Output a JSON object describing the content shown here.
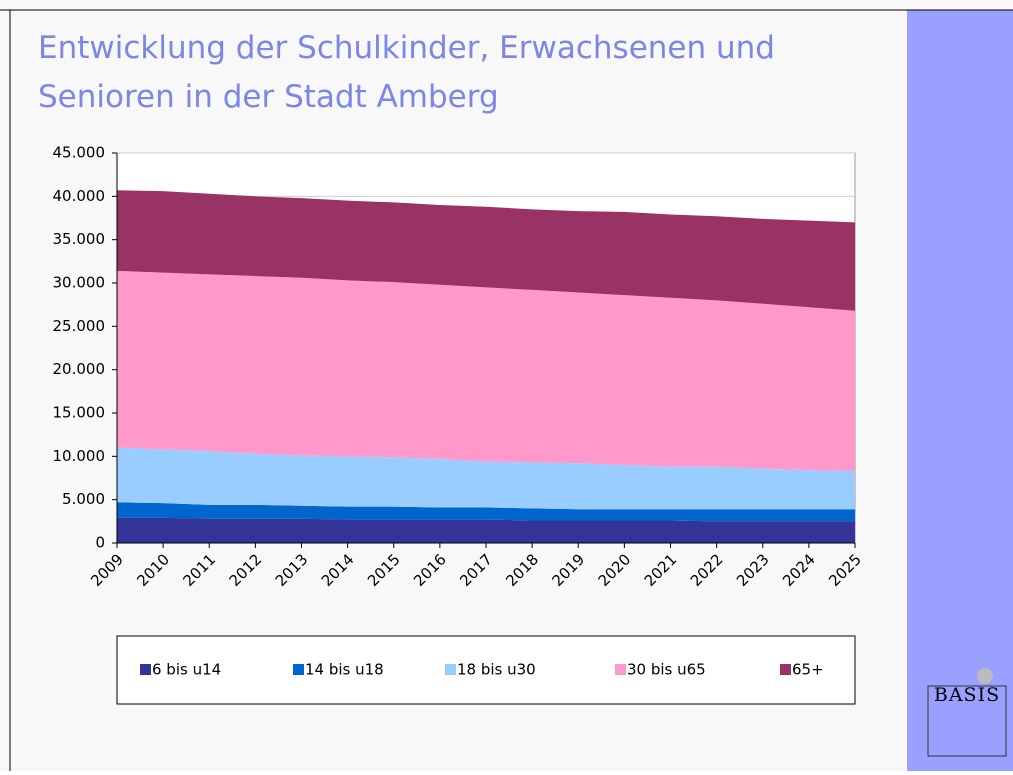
{
  "chart_data": {
    "type": "stacked_area",
    "title": [
      "Entwicklung der Schulkinder, Erwachsenen und",
      "Senioren in der Stadt Amberg"
    ],
    "categories": [
      "2009",
      "2010",
      "2011",
      "2012",
      "2013",
      "2014",
      "2015",
      "2016",
      "2017",
      "2018",
      "2019",
      "2020",
      "2021",
      "2022",
      "2023",
      "2024",
      "2025"
    ],
    "series": [
      {
        "name": "6 bis u14",
        "color": "#333399",
        "values": [
          2900,
          2900,
          2800,
          2800,
          2800,
          2700,
          2700,
          2700,
          2700,
          2600,
          2600,
          2600,
          2600,
          2500,
          2500,
          2500,
          2500
        ]
      },
      {
        "name": "14 bis u18",
        "color": "#0066cc",
        "values": [
          1800,
          1700,
          1600,
          1600,
          1500,
          1500,
          1500,
          1400,
          1400,
          1400,
          1300,
          1300,
          1300,
          1400,
          1400,
          1400,
          1400
        ]
      },
      {
        "name": "18 bis u30",
        "color": "#99ccff",
        "values": [
          6300,
          6200,
          6200,
          5900,
          5800,
          5800,
          5700,
          5600,
          5300,
          5300,
          5300,
          5100,
          4900,
          4900,
          4700,
          4500,
          4400
        ]
      },
      {
        "name": "30 bis u65",
        "color": "#ff99cc",
        "values": [
          20400,
          20400,
          20400,
          20500,
          20500,
          20300,
          20200,
          20100,
          20100,
          19900,
          19700,
          19600,
          19500,
          19200,
          19000,
          18800,
          18500
        ]
      },
      {
        "name": "65+",
        "color": "#993366",
        "values": [
          9300,
          9400,
          9300,
          9200,
          9200,
          9200,
          9200,
          9200,
          9300,
          9300,
          9400,
          9600,
          9600,
          9700,
          9800,
          10000,
          10200
        ]
      }
    ],
    "ylim": [
      0,
      45000
    ],
    "yticks": [
      0,
      {
        "value": 5000,
        "label": "5.000"
      },
      {
        "value": 10000,
        "label": "10.000"
      },
      {
        "value": 15000,
        "label": "15.000"
      },
      {
        "value": 20000,
        "label": "20.000"
      },
      {
        "value": 25000,
        "label": "25.000"
      },
      {
        "value": 30000,
        "label": "30.000"
      },
      {
        "value": 35000,
        "label": "35.000"
      },
      {
        "value": 40000,
        "label": "40.000"
      },
      {
        "value": 45000,
        "label": "45.000"
      }
    ],
    "grid": true,
    "legend": "bottom",
    "logo": "BASIS"
  }
}
